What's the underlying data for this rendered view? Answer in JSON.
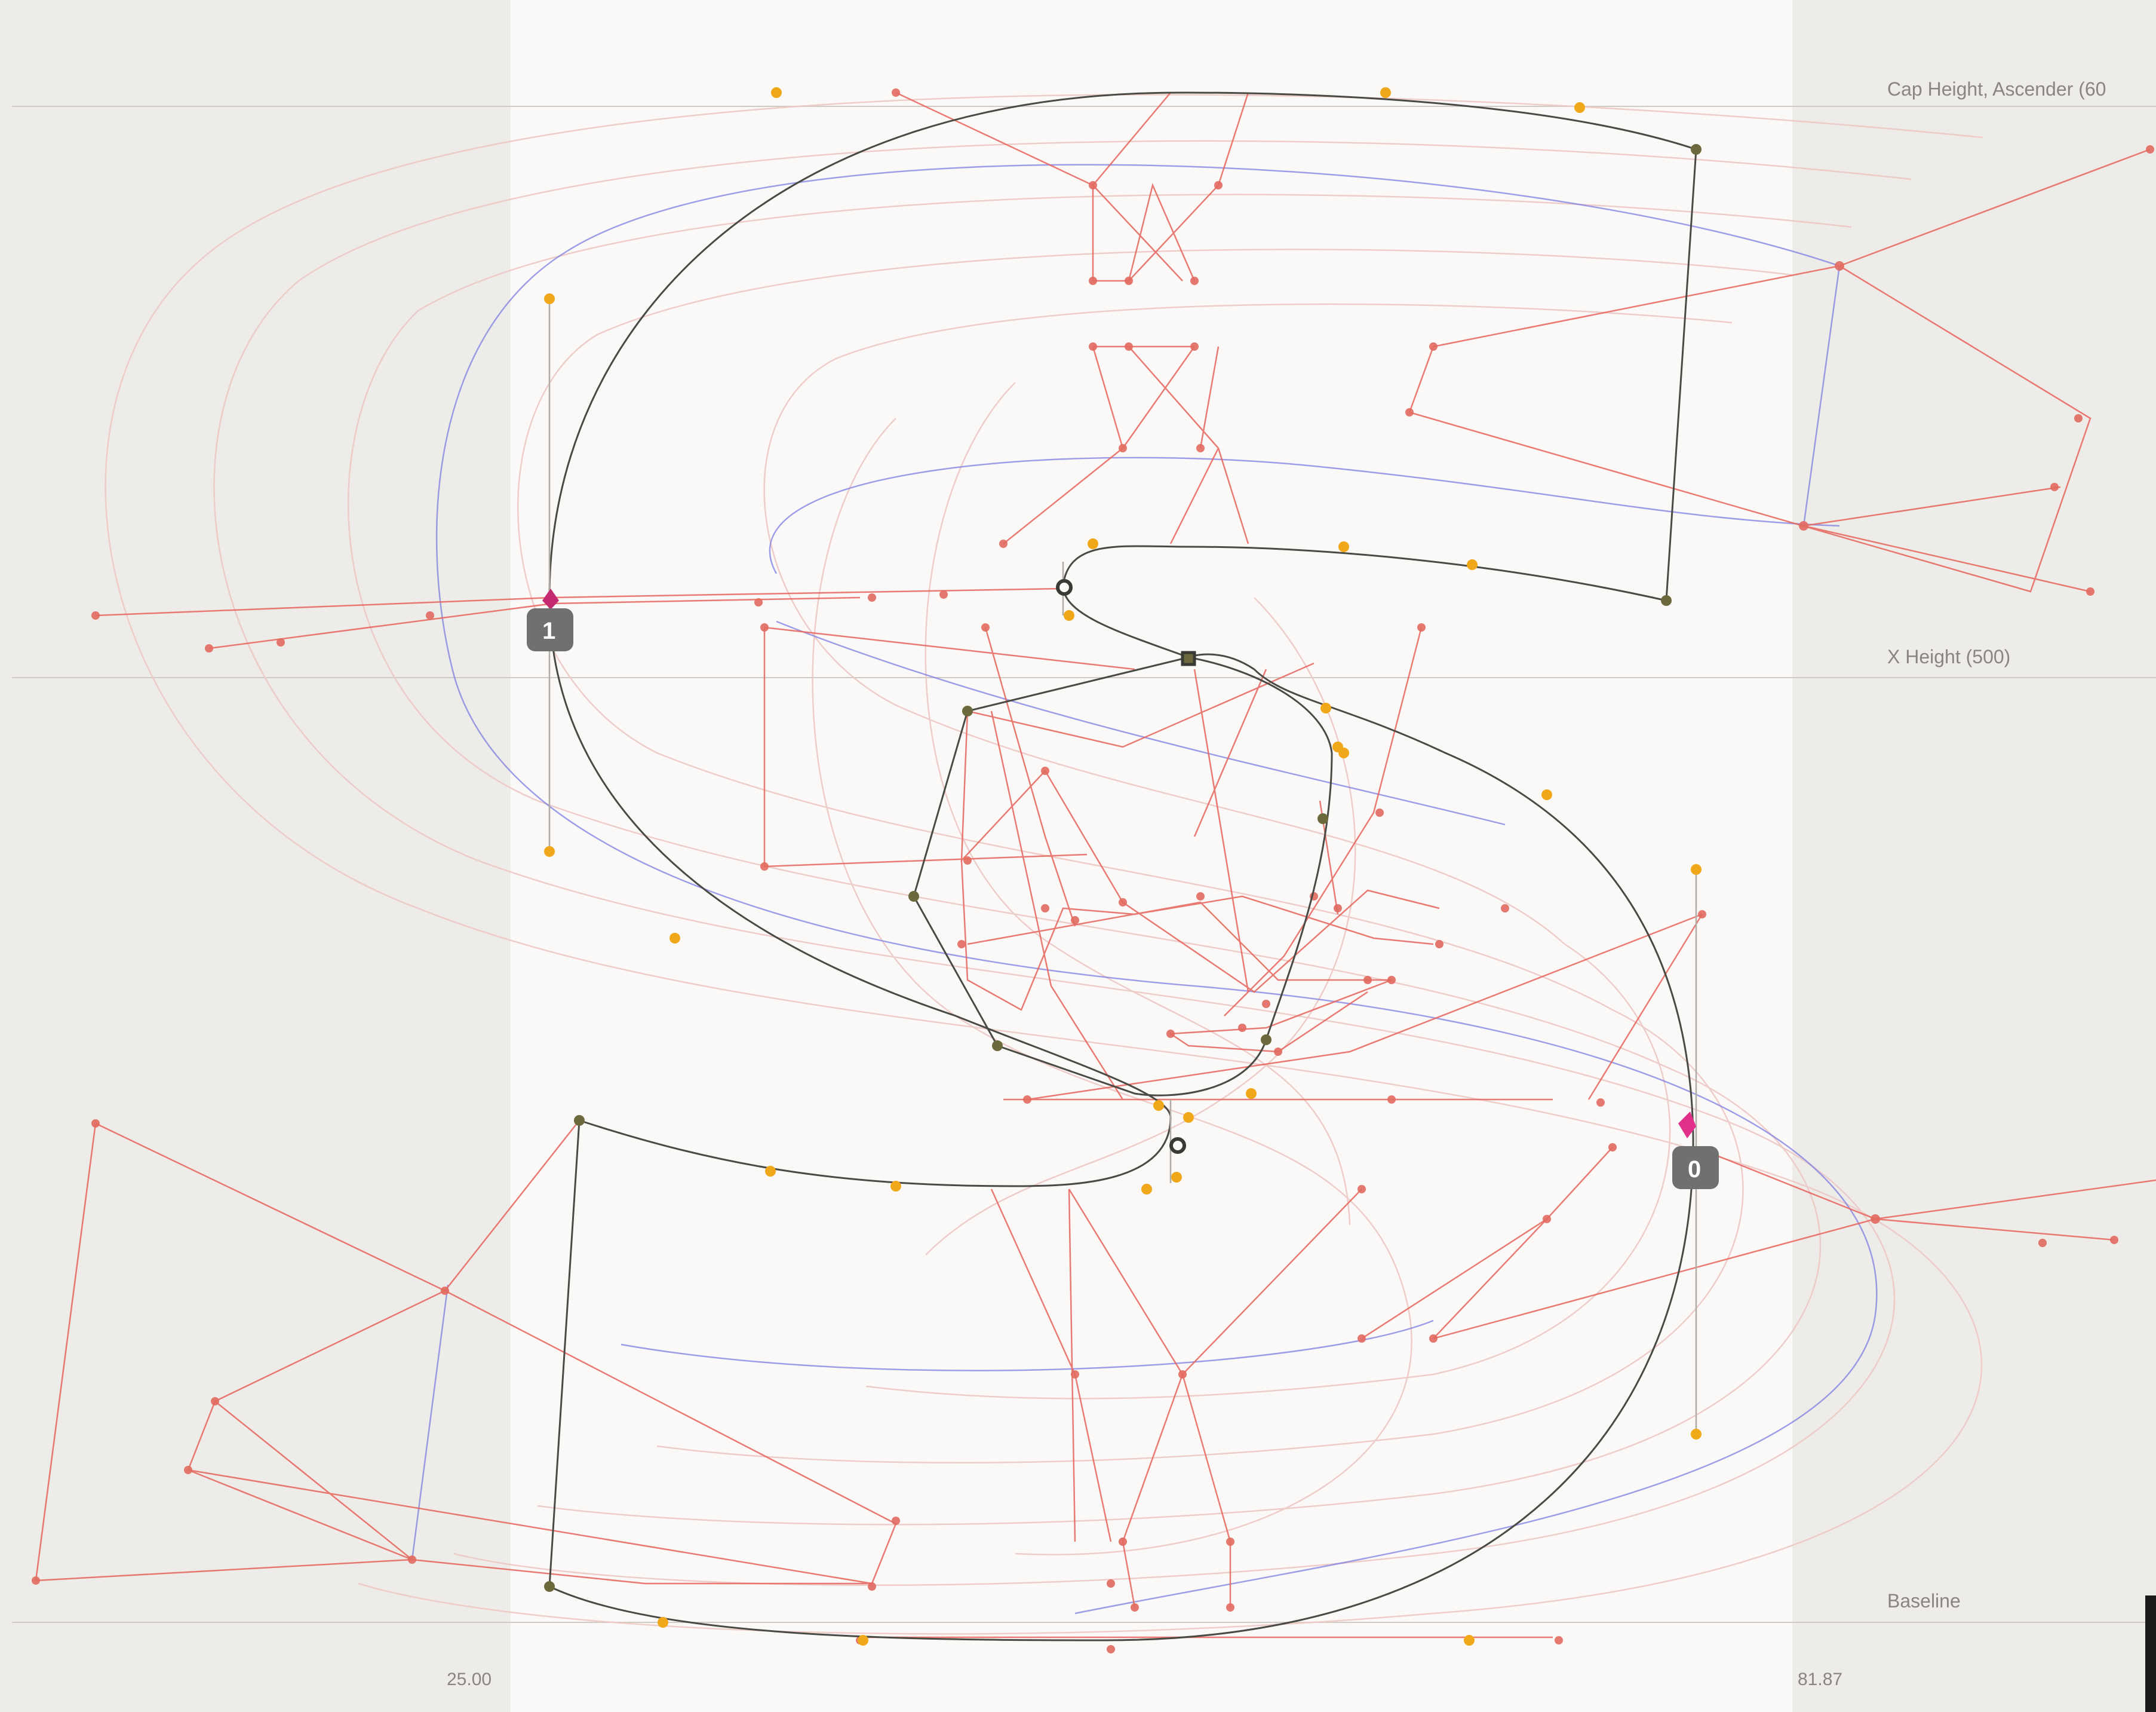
{
  "guides": {
    "cap_height": "Cap Height, Ascender (60",
    "x_height": "X Height (500)",
    "baseline": "Baseline"
  },
  "metrics": {
    "left": "25.00",
    "right": "81.87"
  },
  "nodes": {
    "start": "0",
    "second": "1"
  },
  "colors": {
    "canvas_bg": "#eeece8",
    "glyph_area": "#fbf9f7",
    "outline": "#4a4a44",
    "red_skeleton": "#e2574f",
    "blue_skeleton": "#6d6ee0",
    "orange_handle": "#f0a81a",
    "node_badge": "#707070",
    "start_marker": "#e0308a"
  },
  "icons": {
    "start": "start-direction-icon",
    "selected": "selected-node-icon"
  }
}
